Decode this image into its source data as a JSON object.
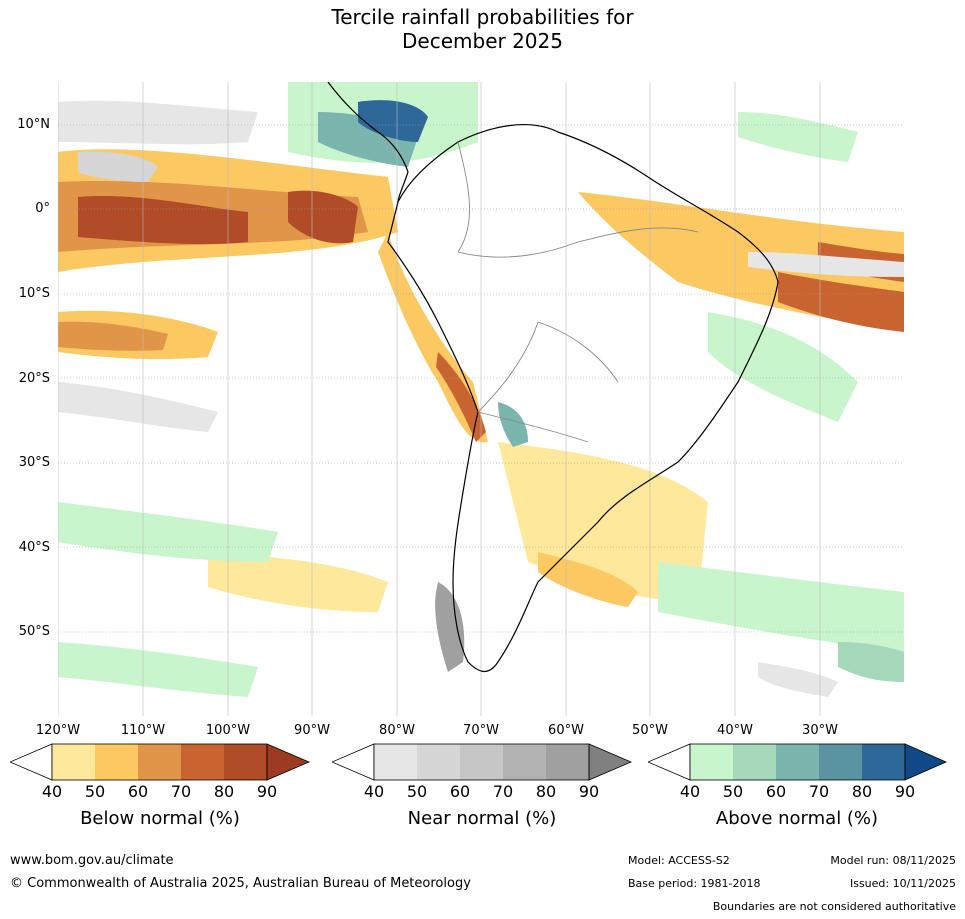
{
  "title": {
    "line1": "Tercile rainfall probabilities for",
    "line2": "December 2025"
  },
  "map": {
    "lat_labels": [
      "10°N",
      "0°",
      "10°S",
      "20°S",
      "30°S",
      "40°S",
      "50°S"
    ],
    "lon_labels": [
      "120°W",
      "110°W",
      "100°W",
      "90°W",
      "80°W",
      "70°W",
      "60°W",
      "50°W",
      "40°W",
      "30°W"
    ],
    "colors": {
      "below": [
        "#fee89b",
        "#fcc862",
        "#e09548",
        "#c96430",
        "#b04c28",
        "#9c3b20"
      ],
      "near": [
        "#e6e6e6",
        "#d6d6d6",
        "#c6c6c6",
        "#b3b3b3",
        "#a0a0a0",
        "#808080"
      ],
      "above": [
        "#c8f5cc",
        "#a6d8bc",
        "#7ab6ae",
        "#5a94a0",
        "#2e6898",
        "#104a88"
      ],
      "land_outline": "#000000",
      "border": "#888888"
    }
  },
  "legend": {
    "below": {
      "title": "Below normal (%)",
      "ticks": [
        "40",
        "50",
        "60",
        "70",
        "80",
        "90"
      ]
    },
    "near": {
      "title": "Near normal (%)",
      "ticks": [
        "40",
        "50",
        "60",
        "70",
        "80",
        "90"
      ]
    },
    "above": {
      "title": "Above normal (%)",
      "ticks": [
        "40",
        "50",
        "60",
        "70",
        "80",
        "90"
      ]
    }
  },
  "footer": {
    "url": "www.bom.gov.au/climate",
    "copyright": "© Commonwealth of Australia 2025, Australian Bureau of Meteorology",
    "model": "Model: ACCESS-S2",
    "model_run": "Model run: 08/11/2025",
    "base_period": "Base period: 1981-2018",
    "issued": "Issued: 10/11/2025",
    "disclaimer": "Boundaries are not considered authoritative"
  }
}
